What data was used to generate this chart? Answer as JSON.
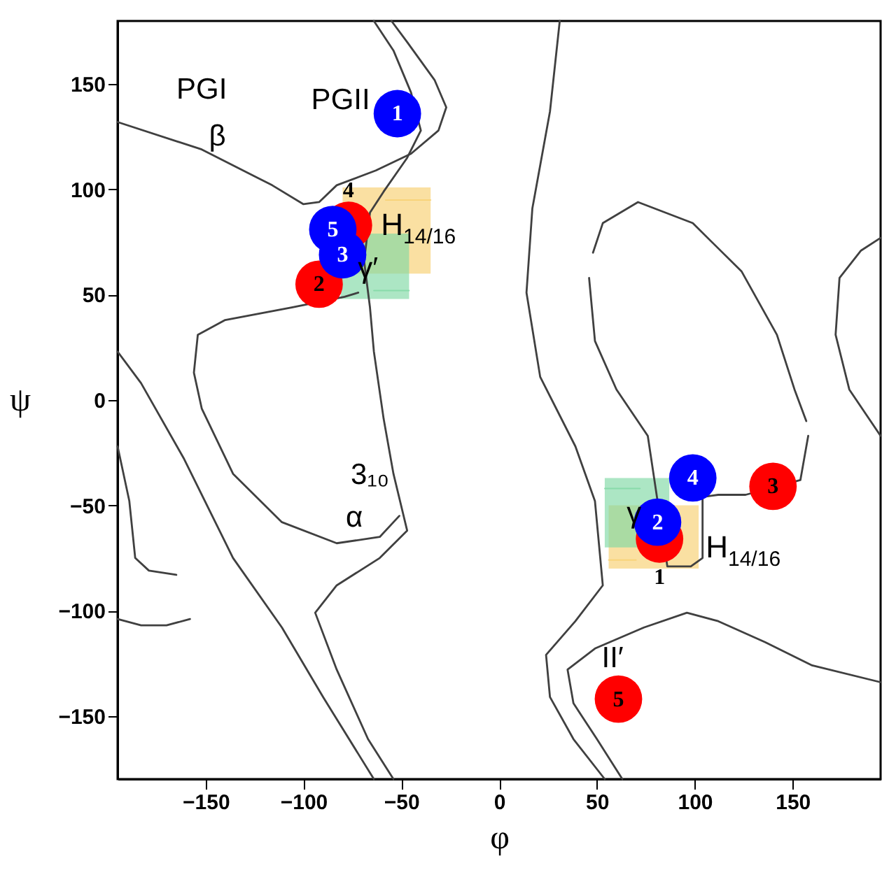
{
  "chart_data": {
    "type": "scatter",
    "xlabel": "φ",
    "ylabel": "ψ",
    "xlim": [
      -195,
      195
    ],
    "ylim": [
      -180,
      180
    ],
    "xticks": [
      -150,
      -100,
      -50,
      0,
      50,
      100,
      150
    ],
    "yticks": [
      -150,
      -100,
      -50,
      0,
      50,
      100,
      150
    ],
    "grid": false,
    "line_style": "solid",
    "series": [
      {
        "type": "line",
        "color": "#f8cf70",
        "x": [
          -80,
          -58,
          -35
        ],
        "values": [
          null,
          95,
          95
        ],
        "lower": [
          60,
          60,
          60
        ],
        "upper": [
          101,
          101,
          101
        ]
      },
      {
        "type": "line",
        "color": "#7fd8a4",
        "x": [
          -81,
          -64,
          -46
        ],
        "values": [
          null,
          52,
          52
        ],
        "lower": [
          48,
          48,
          48
        ],
        "upper": [
          79,
          79,
          79
        ]
      },
      {
        "type": "line",
        "color": "#f8cf70",
        "x": [
          56,
          70,
          102
        ],
        "values": [
          -76,
          -76,
          null
        ],
        "lower": [
          -80,
          -80,
          -80
        ],
        "upper": [
          -50,
          -50,
          -50
        ]
      },
      {
        "type": "line",
        "color": "#7fd8a4",
        "x": [
          54,
          72,
          87
        ],
        "values": [
          -42,
          -42,
          null
        ],
        "lower": [
          -70,
          -70,
          -70
        ],
        "upper": [
          -37,
          -37,
          -37
        ]
      },
      {
        "type": "line",
        "color": "#404040",
        "x": [
          -195,
          -152,
          -116,
          -100,
          -92,
          -83,
          -63,
          -45,
          -31,
          -27,
          -33,
          -47,
          -55
        ],
        "values": [
          132,
          119,
          102,
          93,
          94,
          102,
          109,
          117,
          128,
          139,
          152,
          170,
          180
        ]
      },
      {
        "type": "line",
        "color": "#404040",
        "x": [
          -64,
          -54,
          -45,
          -40,
          -47,
          -59,
          -66,
          -69,
          -66,
          -64,
          -59,
          -54,
          -47,
          -61,
          -83,
          -94,
          -83,
          -67,
          -54
        ],
        "values": [
          180,
          166,
          146,
          128,
          115,
          99,
          89,
          66,
          44,
          23,
          -9,
          -35,
          -62,
          -75,
          -88,
          -101,
          -128,
          -161,
          -180
        ]
      },
      {
        "type": "line",
        "color": "#404040",
        "x": [
          -72,
          -79,
          -106,
          -140,
          -154,
          -156,
          -152,
          -136,
          -111,
          -83,
          -61,
          -51
        ],
        "values": [
          51,
          49,
          44,
          38,
          31,
          13,
          -4,
          -35,
          -58,
          -68,
          -65,
          -55
        ]
      },
      {
        "type": "line",
        "color": "#404040",
        "x": [
          -195,
          -183,
          -161,
          -136,
          -111,
          -90,
          -72,
          -64
        ],
        "values": [
          23,
          8,
          -28,
          -75,
          -108,
          -141,
          -168,
          -180
        ]
      },
      {
        "type": "line",
        "color": "#404040",
        "x": [
          -195,
          -189,
          -186,
          -179,
          -165
        ],
        "values": [
          -22,
          -48,
          -75,
          -81,
          -83
        ]
      },
      {
        "type": "line",
        "color": "#404040",
        "x": [
          -195,
          -183,
          -170,
          -158
        ],
        "values": [
          -104,
          -107,
          -107,
          -104
        ]
      },
      {
        "type": "line",
        "color": "#404040",
        "x": [
          31,
          26,
          17,
          14,
          21,
          39,
          49,
          53,
          39,
          24,
          26,
          38,
          54
        ],
        "values": [
          180,
          137,
          91,
          51,
          11,
          -22,
          -48,
          -88,
          -105,
          -121,
          -141,
          -161,
          -180
        ]
      },
      {
        "type": "line",
        "color": "#404040",
        "x": [
          195,
          160,
          136,
          112,
          96,
          74,
          49,
          35,
          38,
          50,
          63
        ],
        "values": [
          -134,
          -126,
          -115,
          -105,
          -101,
          -108,
          -118,
          -128,
          -144,
          -161,
          -180
        ]
      },
      {
        "type": "line",
        "color": "#404040",
        "x": [
          46,
          49,
          60,
          76,
          86,
          98,
          104,
          104,
          112,
          126,
          154,
          158
        ],
        "values": [
          58,
          28,
          5,
          -17,
          -79,
          -79,
          -75,
          -46,
          -45,
          -45,
          -38,
          -17
        ]
      },
      {
        "type": "line",
        "color": "#404040",
        "x": [
          48,
          53,
          71,
          99,
          124,
          142,
          151,
          157
        ],
        "values": [
          70,
          84,
          94,
          84,
          61,
          31,
          5,
          -10
        ]
      },
      {
        "type": "line",
        "color": "#404040",
        "x": [
          195,
          179,
          172,
          174,
          185,
          195
        ],
        "values": [
          -17,
          5,
          31,
          58,
          71,
          77
        ]
      },
      {
        "color": "#ff0000",
        "marker": "circle",
        "x": [
          82,
          -92,
          140,
          -77,
          61
        ],
        "values": [
          -66,
          55,
          -41,
          83,
          -142
        ]
      },
      {
        "color": "#0000ff",
        "marker": "circle",
        "x": [
          -52,
          81,
          -80,
          99,
          -85
        ],
        "values": [
          136,
          -58,
          69,
          -37,
          81
        ]
      }
    ],
    "annotations": [
      "PGI",
      "β",
      "PGII",
      "H$_{14/16}$",
      "γ′",
      "3₁₀",
      "α",
      "γ",
      "H$_{14/16}$",
      "II′",
      {
        "text": "1",
        "x": 82,
        "y": -66
      },
      {
        "text": "2",
        "x": -92,
        "y": 55
      },
      {
        "text": "3",
        "x": 140,
        "y": -41
      },
      {
        "text": "4",
        "x": -77,
        "y": 83
      },
      {
        "text": "5",
        "x": 61,
        "y": -142
      },
      {
        "text": "1",
        "x": -52,
        "y": 136
      },
      {
        "text": "2",
        "x": 81,
        "y": -58
      },
      {
        "text": "3",
        "x": -80,
        "y": 69
      },
      {
        "text": "4",
        "x": 99,
        "y": -37
      },
      {
        "text": "5",
        "x": -85,
        "y": 81
      }
    ]
  }
}
